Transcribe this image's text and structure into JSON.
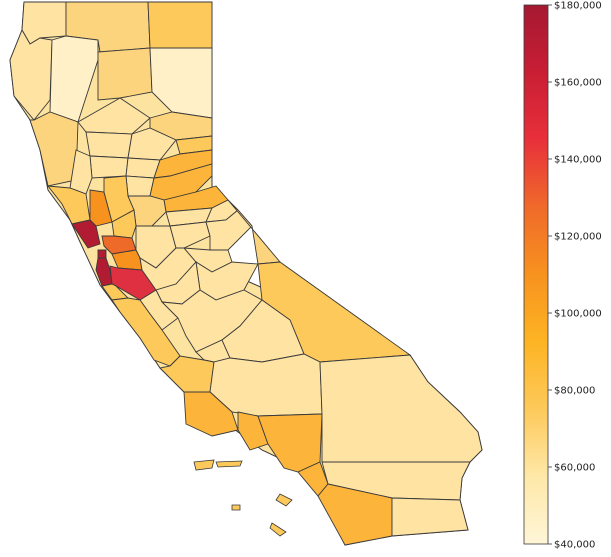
{
  "colorbar": {
    "min": 40000,
    "max": 180000,
    "ticks": [
      {
        "value": 180000,
        "label": "$180,000"
      },
      {
        "value": 160000,
        "label": "$160,000"
      },
      {
        "value": 140000,
        "label": "$140,000"
      },
      {
        "value": 120000,
        "label": "$120,000"
      },
      {
        "value": 100000,
        "label": "$100,000"
      },
      {
        "value": 80000,
        "label": "$80,000"
      },
      {
        "value": 60000,
        "label": "$60,000"
      },
      {
        "value": 40000,
        "label": "$40,000"
      }
    ],
    "colors": [
      "#fff6d8",
      "#fee8a8",
      "#fdc95a",
      "#fdb424",
      "#f7921f",
      "#f06a2a",
      "#e8303b",
      "#c81e34",
      "#a51932"
    ]
  },
  "colors": {
    "border": "#3a3a3a",
    "state_fill": "#fde3a0"
  }
}
